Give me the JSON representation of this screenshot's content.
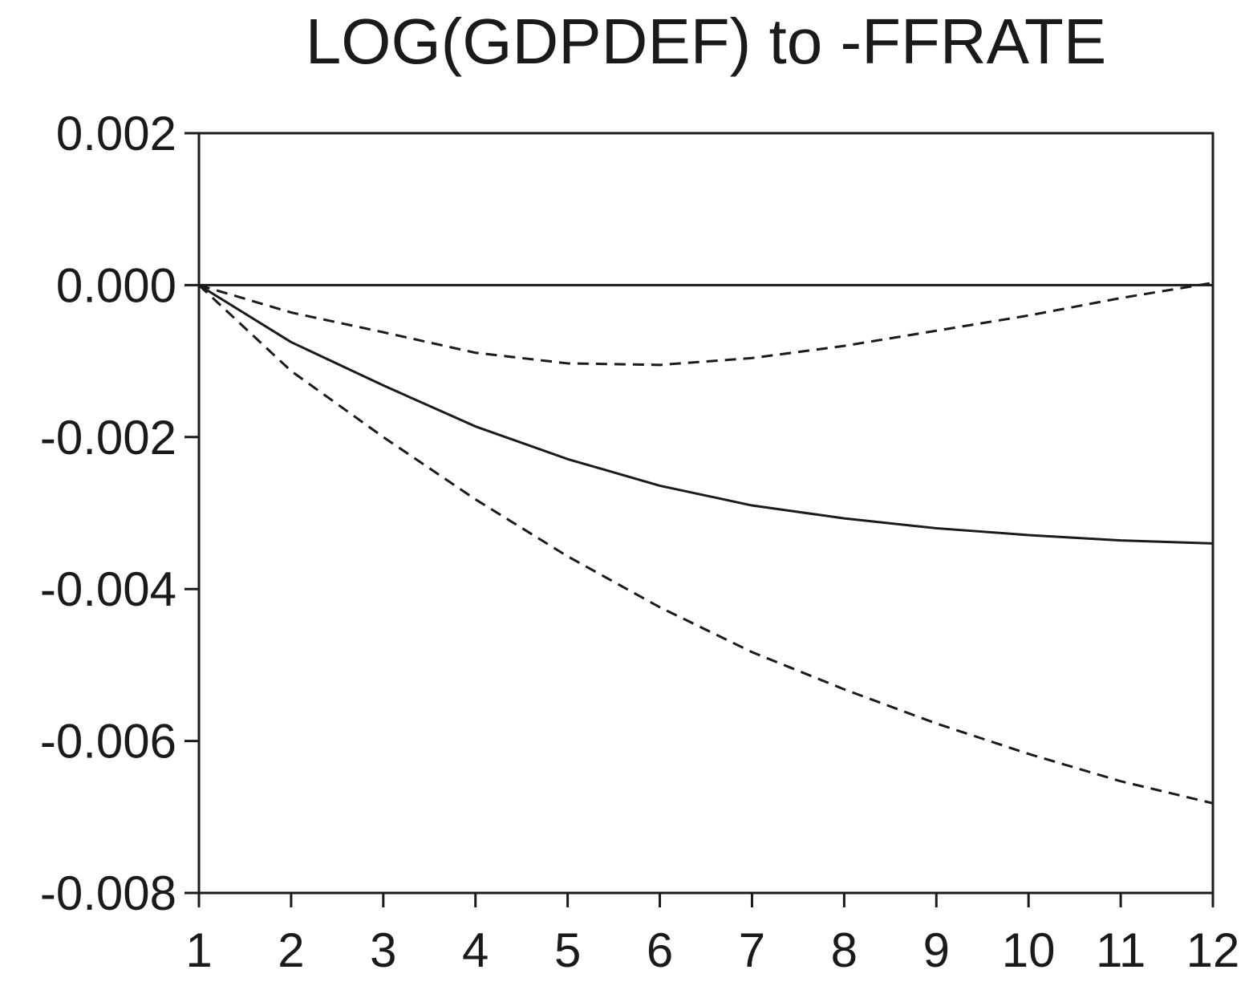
{
  "chart_data": {
    "type": "line",
    "title": "LOG(GDPDEF) to -FFRATE",
    "xlabel": "",
    "ylabel": "",
    "x": [
      1,
      2,
      3,
      4,
      5,
      6,
      7,
      8,
      9,
      10,
      11,
      12
    ],
    "xlim": [
      1,
      12
    ],
    "ylim": [
      -0.008,
      0.002
    ],
    "yticks": [
      0.002,
      0.0,
      -0.002,
      -0.004,
      -0.006,
      -0.008
    ],
    "ytick_labels": [
      "0.002",
      "0.000",
      "-0.002",
      "-0.004",
      "-0.006",
      "-0.008"
    ],
    "xtick_labels": [
      "1",
      "2",
      "3",
      "4",
      "5",
      "6",
      "7",
      "8",
      "9",
      "10",
      "11",
      "12"
    ],
    "zero_line": 0,
    "grid": false,
    "legend": "none",
    "series": [
      {
        "style": "solid",
        "values": [
          0.0,
          -0.00075,
          -0.00132,
          -0.00186,
          -0.00229,
          -0.00264,
          -0.0029,
          -0.00307,
          -0.0032,
          -0.00329,
          -0.00336,
          -0.0034
        ]
      },
      {
        "style": "dashed",
        "values": [
          0.0,
          -0.00036,
          -0.00062,
          -0.00089,
          -0.00103,
          -0.00105,
          -0.00096,
          -0.0008,
          -0.0006,
          -0.0004,
          -0.00017,
          3e-05
        ]
      },
      {
        "style": "dashed",
        "values": [
          0.0,
          -0.00113,
          -0.002,
          -0.00282,
          -0.00357,
          -0.00424,
          -0.00483,
          -0.00532,
          -0.00577,
          -0.00617,
          -0.00653,
          -0.00682
        ]
      }
    ],
    "colors": {
      "line": "#1a1a1a",
      "background": "#ffffff"
    }
  }
}
